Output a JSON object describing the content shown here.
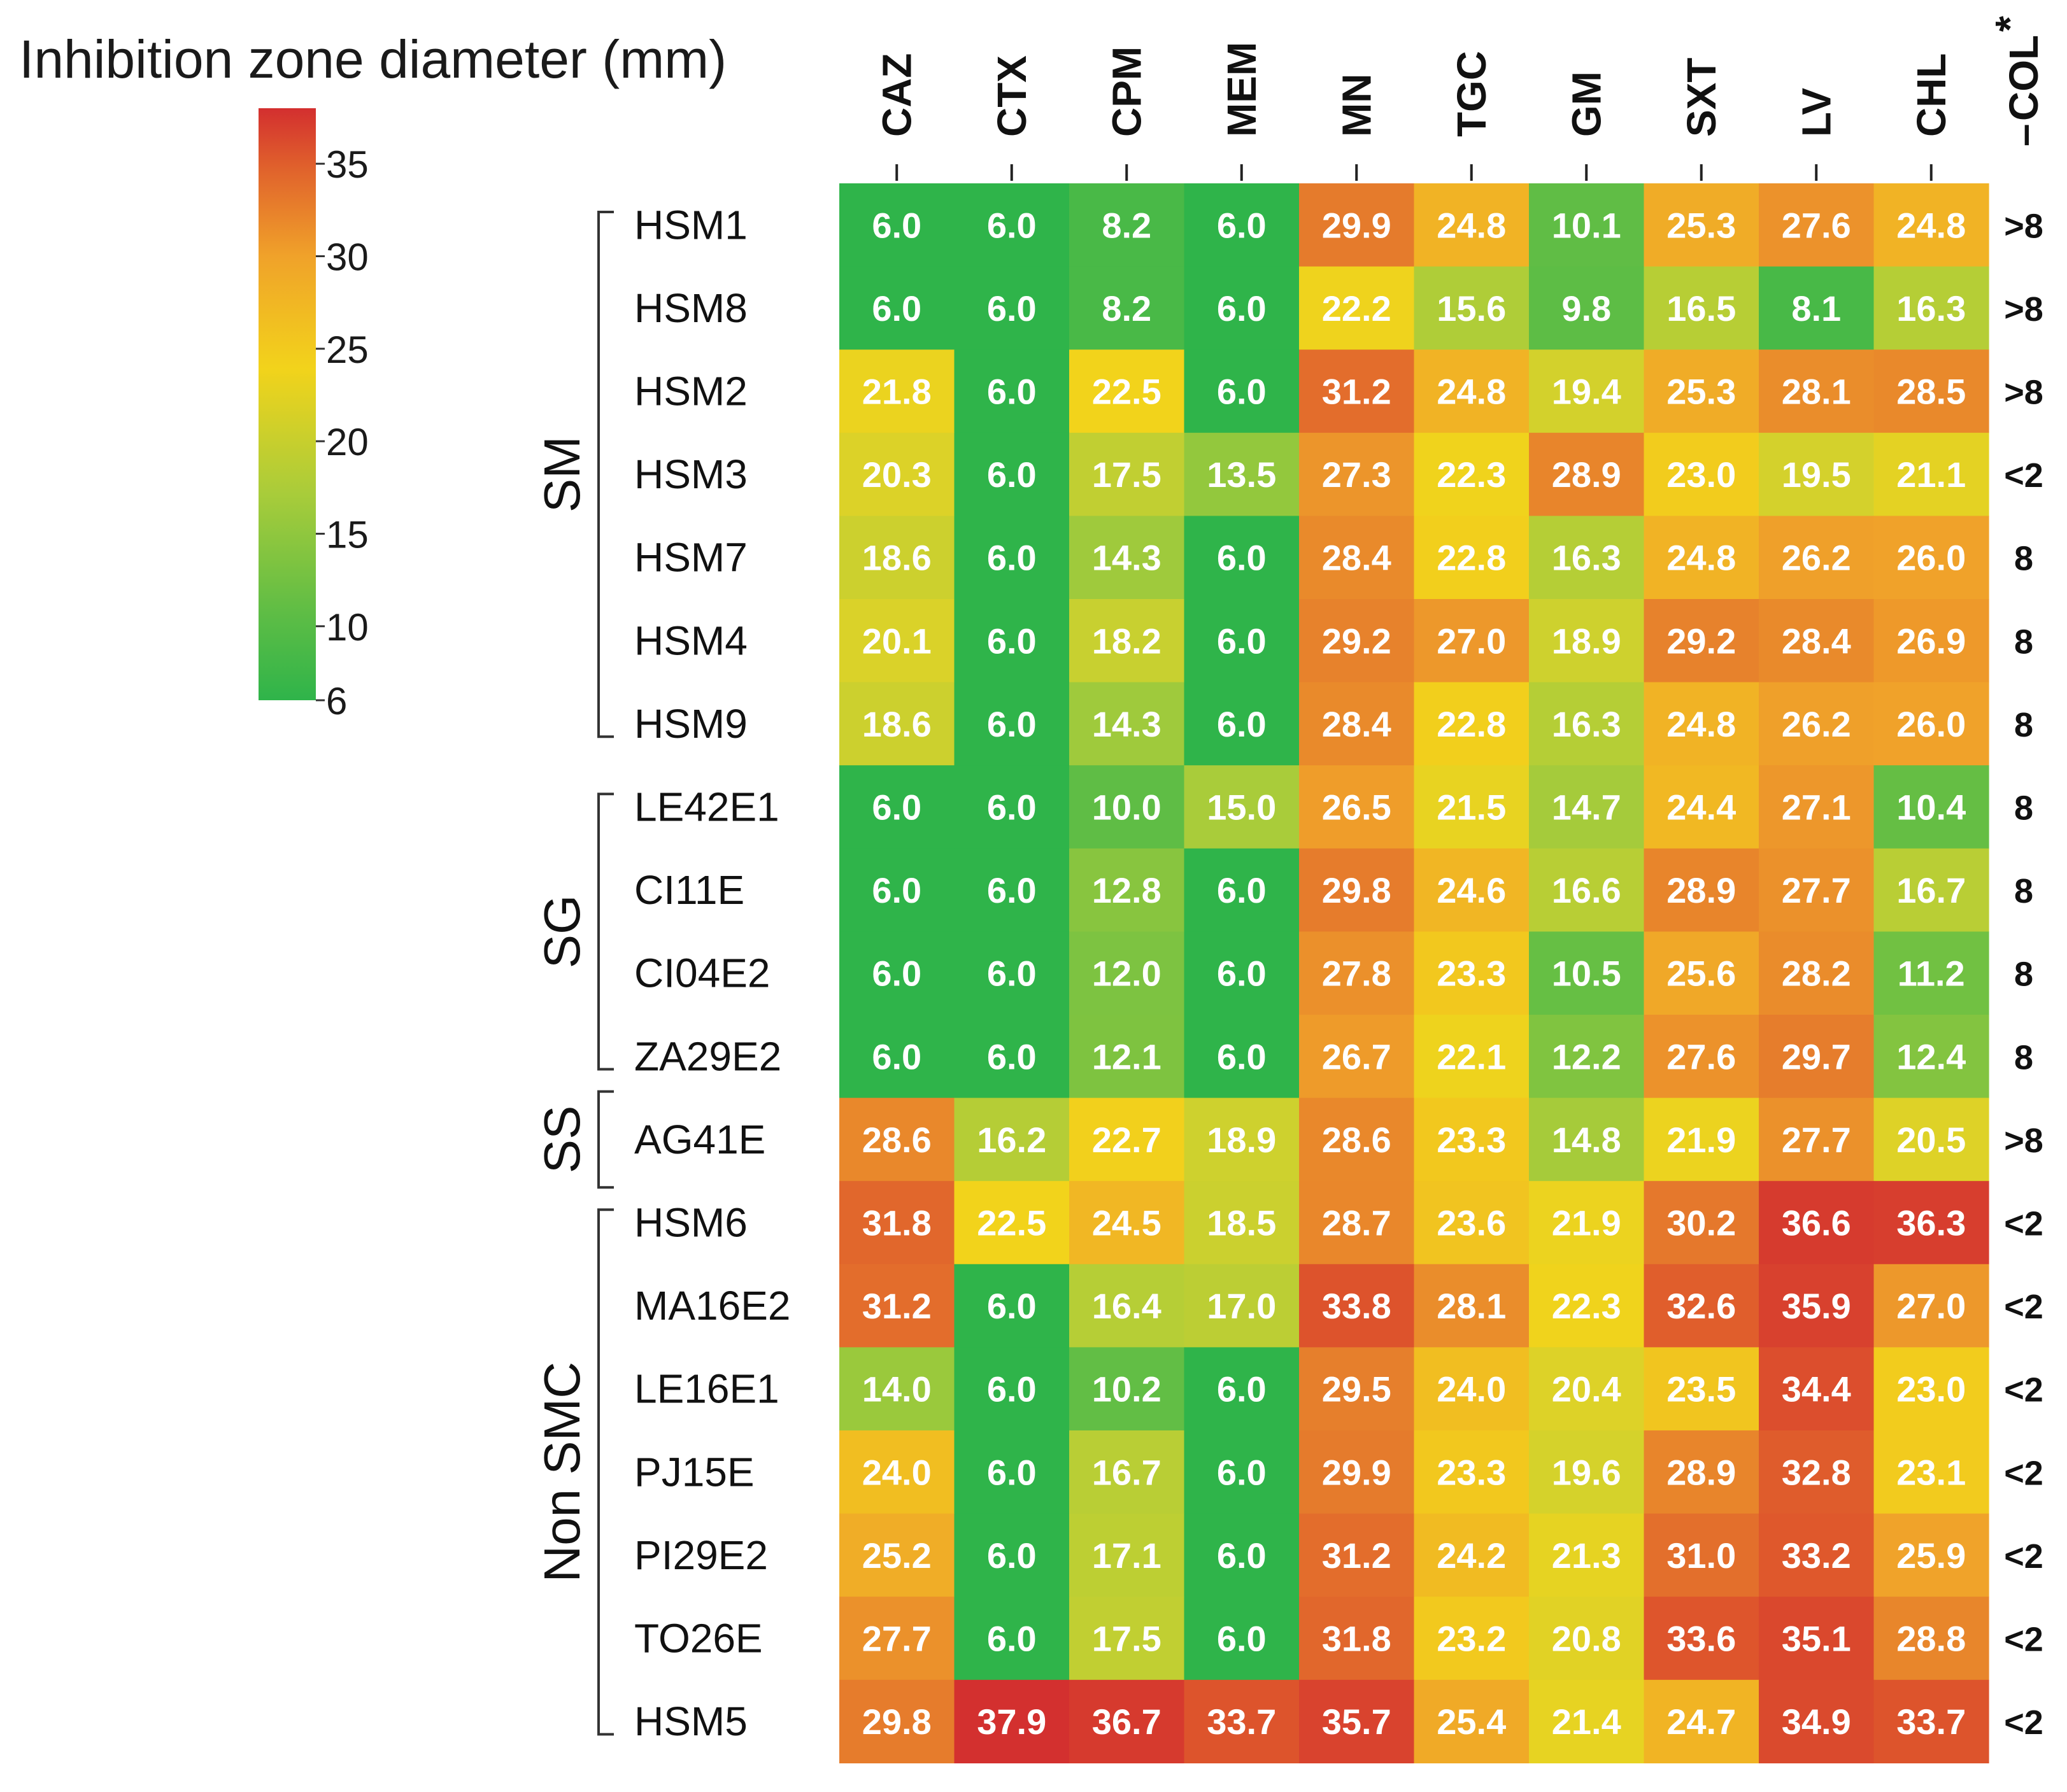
{
  "chart_data": {
    "type": "heatmap",
    "legend_title": "Inhibition zone diameter (mm)",
    "legend_ticks": [
      35,
      30,
      25,
      20,
      15,
      10,
      6
    ],
    "legend_range": [
      6,
      38
    ],
    "legend_position": "top-left",
    "color_scale": [
      "#2fb44a",
      "#8cc63f",
      "#f2d31b",
      "#f0a22a",
      "#e0612c",
      "#d32f2f"
    ],
    "columns": [
      "CAZ",
      "CTX",
      "CPM",
      "MEM",
      "MN",
      "TGC",
      "GM",
      "SXT",
      "LV",
      "CHL"
    ],
    "extra_column": {
      "label": "COL",
      "marker": "*",
      "dash": "–"
    },
    "groups": [
      {
        "label": "SM",
        "start": 0,
        "end": 6
      },
      {
        "label": "SG",
        "start": 7,
        "end": 10
      },
      {
        "label": "SS",
        "start": 11,
        "end": 11
      },
      {
        "label": "Non SMC",
        "start": 12,
        "end": 18
      }
    ],
    "rows": [
      {
        "name": "HSM1",
        "values": [
          6.0,
          6.0,
          8.2,
          6.0,
          29.9,
          24.8,
          10.1,
          25.3,
          27.6,
          24.8
        ],
        "col": ">8"
      },
      {
        "name": "HSM8",
        "values": [
          6.0,
          6.0,
          8.2,
          6.0,
          22.2,
          15.6,
          9.8,
          16.5,
          8.1,
          16.3
        ],
        "col": ">8"
      },
      {
        "name": "HSM2",
        "values": [
          21.8,
          6.0,
          22.5,
          6.0,
          31.2,
          24.8,
          19.4,
          25.3,
          28.1,
          28.5
        ],
        "col": ">8"
      },
      {
        "name": "HSM3",
        "values": [
          20.3,
          6.0,
          17.5,
          13.5,
          27.3,
          22.3,
          28.9,
          23.0,
          19.5,
          21.1
        ],
        "col": "<2"
      },
      {
        "name": "HSM7",
        "values": [
          18.6,
          6.0,
          14.3,
          6.0,
          28.4,
          22.8,
          16.3,
          24.8,
          26.2,
          26.0
        ],
        "col": "8"
      },
      {
        "name": "HSM4",
        "values": [
          20.1,
          6.0,
          18.2,
          6.0,
          29.2,
          27.0,
          18.9,
          29.2,
          28.4,
          26.9
        ],
        "col": "8"
      },
      {
        "name": "HSM9",
        "values": [
          18.6,
          6.0,
          14.3,
          6.0,
          28.4,
          22.8,
          16.3,
          24.8,
          26.2,
          26.0
        ],
        "col": "8"
      },
      {
        "name": "LE42E1",
        "values": [
          6.0,
          6.0,
          10.0,
          15.0,
          26.5,
          21.5,
          14.7,
          24.4,
          27.1,
          10.4
        ],
        "col": "8"
      },
      {
        "name": "CI11E",
        "values": [
          6.0,
          6.0,
          12.8,
          6.0,
          29.8,
          24.6,
          16.6,
          28.9,
          27.7,
          16.7
        ],
        "col": "8"
      },
      {
        "name": "CI04E2",
        "values": [
          6.0,
          6.0,
          12.0,
          6.0,
          27.8,
          23.3,
          10.5,
          25.6,
          28.2,
          11.2
        ],
        "col": "8"
      },
      {
        "name": "ZA29E2",
        "values": [
          6.0,
          6.0,
          12.1,
          6.0,
          26.7,
          22.1,
          12.2,
          27.6,
          29.7,
          12.4
        ],
        "col": "8"
      },
      {
        "name": "AG41E",
        "values": [
          28.6,
          16.2,
          22.7,
          18.9,
          28.6,
          23.3,
          14.8,
          21.9,
          27.7,
          20.5
        ],
        "col": ">8"
      },
      {
        "name": "HSM6",
        "values": [
          31.8,
          22.5,
          24.5,
          18.5,
          28.7,
          23.6,
          21.9,
          30.2,
          36.6,
          36.3
        ],
        "col": "<2"
      },
      {
        "name": "MA16E2",
        "values": [
          31.2,
          6.0,
          16.4,
          17.0,
          33.8,
          28.1,
          22.3,
          32.6,
          35.9,
          27.0
        ],
        "col": "<2"
      },
      {
        "name": "LE16E1",
        "values": [
          14.0,
          6.0,
          10.2,
          6.0,
          29.5,
          24.0,
          20.4,
          23.5,
          34.4,
          23.0
        ],
        "col": "<2"
      },
      {
        "name": "PJ15E",
        "values": [
          24.0,
          6.0,
          16.7,
          6.0,
          29.9,
          23.3,
          19.6,
          28.9,
          32.8,
          23.1
        ],
        "col": "<2"
      },
      {
        "name": "PI29E2",
        "values": [
          25.2,
          6.0,
          17.1,
          6.0,
          31.2,
          24.2,
          21.3,
          31.0,
          33.2,
          25.9
        ],
        "col": "<2"
      },
      {
        "name": "TO26E",
        "values": [
          27.7,
          6.0,
          17.5,
          6.0,
          31.8,
          23.2,
          20.8,
          33.6,
          35.1,
          28.8
        ],
        "col": "<2"
      },
      {
        "name": "HSM5",
        "values": [
          29.8,
          37.9,
          36.7,
          33.7,
          35.7,
          25.4,
          21.4,
          24.7,
          34.9,
          33.7
        ],
        "col": "<2"
      }
    ]
  }
}
